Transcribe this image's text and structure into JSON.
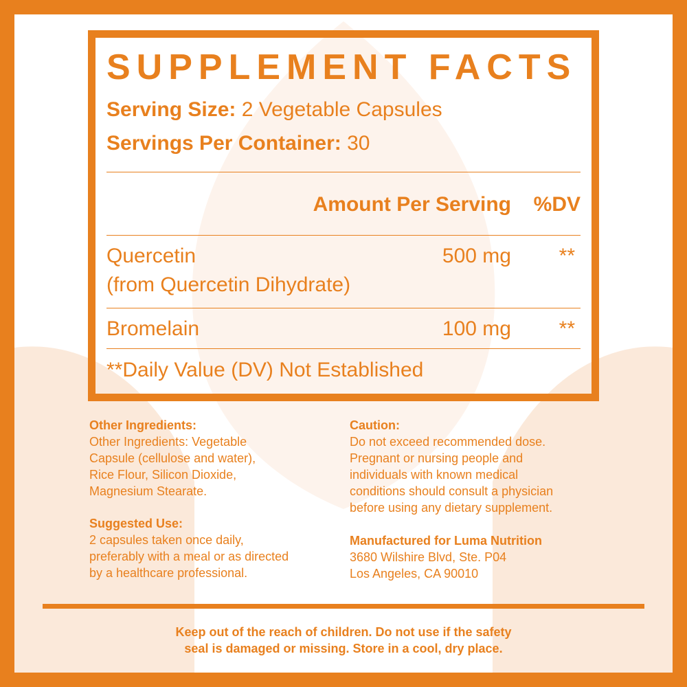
{
  "colors": {
    "accent": "#E8801E",
    "background_shape": "#FBE9DA"
  },
  "title": "SUPPLEMENT FACTS",
  "serving_size": {
    "label": "Serving Size:",
    "value": " 2 Vegetable Capsules"
  },
  "servings_per_container": {
    "label": "Servings Per Container:",
    "value": " 30"
  },
  "table": {
    "headers": {
      "amount": "Amount Per Serving",
      "dv": "%DV"
    },
    "rows": [
      {
        "name": "Quercetin",
        "source": "(from Quercetin Dihydrate)",
        "amount": "500 mg",
        "dv": "**"
      },
      {
        "name": "Bromelain",
        "amount": "100 mg",
        "dv": "**"
      }
    ],
    "footnote": "**Daily Value (DV) Not Established"
  },
  "other_ingredients": {
    "heading": "Other Ingredients:",
    "lines": [
      "Other Ingredients: Vegetable",
      "Capsule (cellulose and water),",
      "Rice Flour, Silicon Dioxide,",
      "Magnesium Stearate."
    ]
  },
  "suggested_use": {
    "heading": "Suggested Use:",
    "lines": [
      "2 capsules taken once daily,",
      "preferably with a meal or as directed",
      "by a healthcare professional."
    ]
  },
  "caution": {
    "heading": "Caution:",
    "lines": [
      "Do not exceed recommended dose.",
      "Pregnant or nursing people and",
      "individuals with known medical",
      "conditions should consult a physician",
      "before using any dietary supplement."
    ]
  },
  "manufacturer": {
    "heading": "Manufactured for Luma Nutrition",
    "lines": [
      "3680 Wilshire Blvd, Ste. P04",
      "Los Angeles, CA 90010"
    ]
  },
  "footer": {
    "lines": [
      "Keep out of the reach of children. Do not use if the safety",
      "seal is damaged or missing. Store in a cool, dry place."
    ]
  }
}
